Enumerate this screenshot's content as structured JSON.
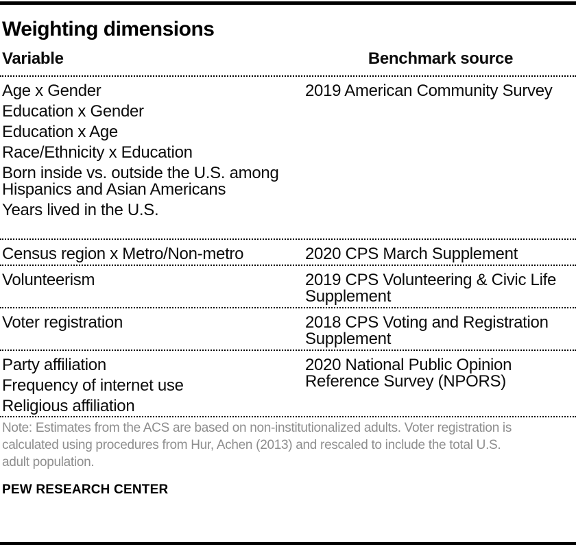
{
  "title": "Weighting dimensions",
  "columns": {
    "variable": "Variable",
    "source": "Benchmark source"
  },
  "chart_data": {
    "type": "table",
    "title": "Weighting dimensions",
    "column_headers": [
      "Variable",
      "Benchmark source"
    ],
    "rows": [
      {
        "variables": [
          "Age x Gender",
          "Education x Gender",
          "Education x Age",
          "Race/Ethnicity x Education",
          "Born inside vs. outside the U.S. among\nHispanics and Asian Americans",
          "Years lived in the U.S."
        ],
        "source": "2019 American Community Survey"
      },
      {
        "variables": [
          "Census region x Metro/Non-metro"
        ],
        "source": "2020 CPS March Supplement"
      },
      {
        "variables": [
          "Volunteerism"
        ],
        "source": "2019 CPS Volunteering & Civic Life\nSupplement"
      },
      {
        "variables": [
          "Voter registration"
        ],
        "source": "2018 CPS Voting and Registration\nSupplement"
      },
      {
        "variables": [
          "Party affiliation",
          "Frequency of internet use",
          "Religious affiliation"
        ],
        "source": "2020 National Public Opinion\nReference Survey (NPORS)"
      }
    ]
  },
  "note": "Note: Estimates from the ACS are based on non-institutionalized adults. Voter registration is\ncalculated using procedures from Hur, Achen (2013) and rescaled to include the total U.S.\nadult population.",
  "footer": "PEW RESEARCH CENTER",
  "colors": {
    "text": "#000000",
    "note_gray": "#8e8e8e",
    "rule": "#000000"
  }
}
